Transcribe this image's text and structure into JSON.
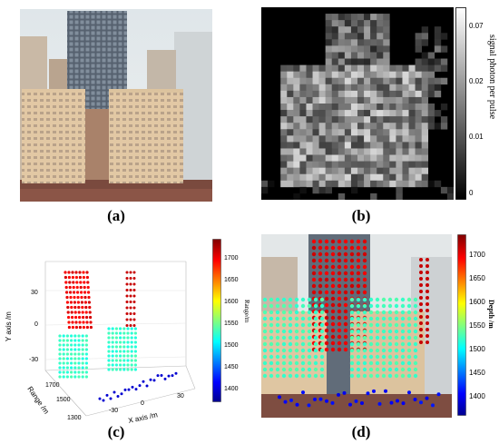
{
  "captions": {
    "a": "(a)",
    "b": "(b)",
    "c": "(c)",
    "d": "(d)"
  },
  "panel_b": {
    "colorbar_ticks": [
      "0.07",
      "0.02",
      "0.01",
      "0"
    ],
    "colorbar_label": "signal photon per pulse"
  },
  "panel_c": {
    "y_axis_label": "Y axis /m",
    "y_ticks": [
      "30",
      "0",
      "-30"
    ],
    "range_label": "Range /m",
    "range_ticks": [
      "1700",
      "1500",
      "1300"
    ],
    "x_axis_label": "X axis /m",
    "x_ticks": [
      "-30",
      "0",
      "30"
    ],
    "colorbar_ticks": [
      "1700",
      "1650",
      "1600",
      "1550",
      "1500",
      "1450",
      "1400"
    ],
    "colorbar_label": "Range/m"
  },
  "panel_d": {
    "colorbar_ticks": [
      "1700",
      "1650",
      "1600",
      "1550",
      "1500",
      "1450",
      "1400"
    ],
    "colorbar_label": "Depth /m"
  }
}
